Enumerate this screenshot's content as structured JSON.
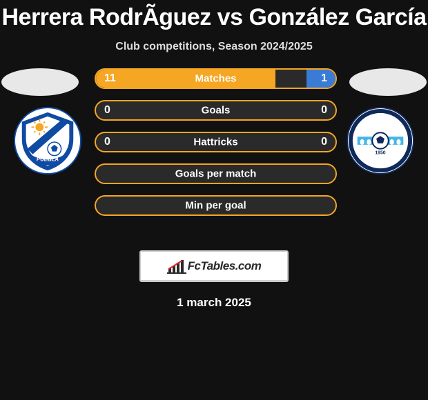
{
  "title": "Herrera RodrÃ­guez vs González García",
  "subtitle": "Club competitions, Season 2024/2025",
  "ellipse_color": "#e8e8e8",
  "brand": {
    "text": "FcTables.com"
  },
  "date": "1 march 2025",
  "left_team": {
    "bg": "#ffffff",
    "primary": "#0f4aa3",
    "name": "Puebla FC"
  },
  "right_team": {
    "bg": "#ffffff",
    "primary": "#0f2a5a",
    "accent": "#45b6e8",
    "name": "Querétaro"
  },
  "bars": [
    {
      "label": "Matches",
      "left_val": "11",
      "right_val": "1",
      "left_pct": 75,
      "right_pct": 12,
      "left_color": "#f5a623",
      "right_color": "#3a7bd5",
      "show_vals": true
    },
    {
      "label": "Goals",
      "left_val": "0",
      "right_val": "0",
      "left_pct": 0,
      "right_pct": 0,
      "left_color": "#f5a623",
      "right_color": "#3a7bd5",
      "show_vals": true
    },
    {
      "label": "Hattricks",
      "left_val": "0",
      "right_val": "0",
      "left_pct": 0,
      "right_pct": 0,
      "left_color": "#f5a623",
      "right_color": "#3a7bd5",
      "show_vals": true
    },
    {
      "label": "Goals per match",
      "left_val": "",
      "right_val": "",
      "left_pct": 0,
      "right_pct": 0,
      "left_color": "#f5a623",
      "right_color": "#3a7bd5",
      "show_vals": false
    },
    {
      "label": "Min per goal",
      "left_val": "",
      "right_val": "",
      "left_pct": 0,
      "right_pct": 0,
      "left_color": "#f5a623",
      "right_color": "#3a7bd5",
      "show_vals": false
    }
  ]
}
